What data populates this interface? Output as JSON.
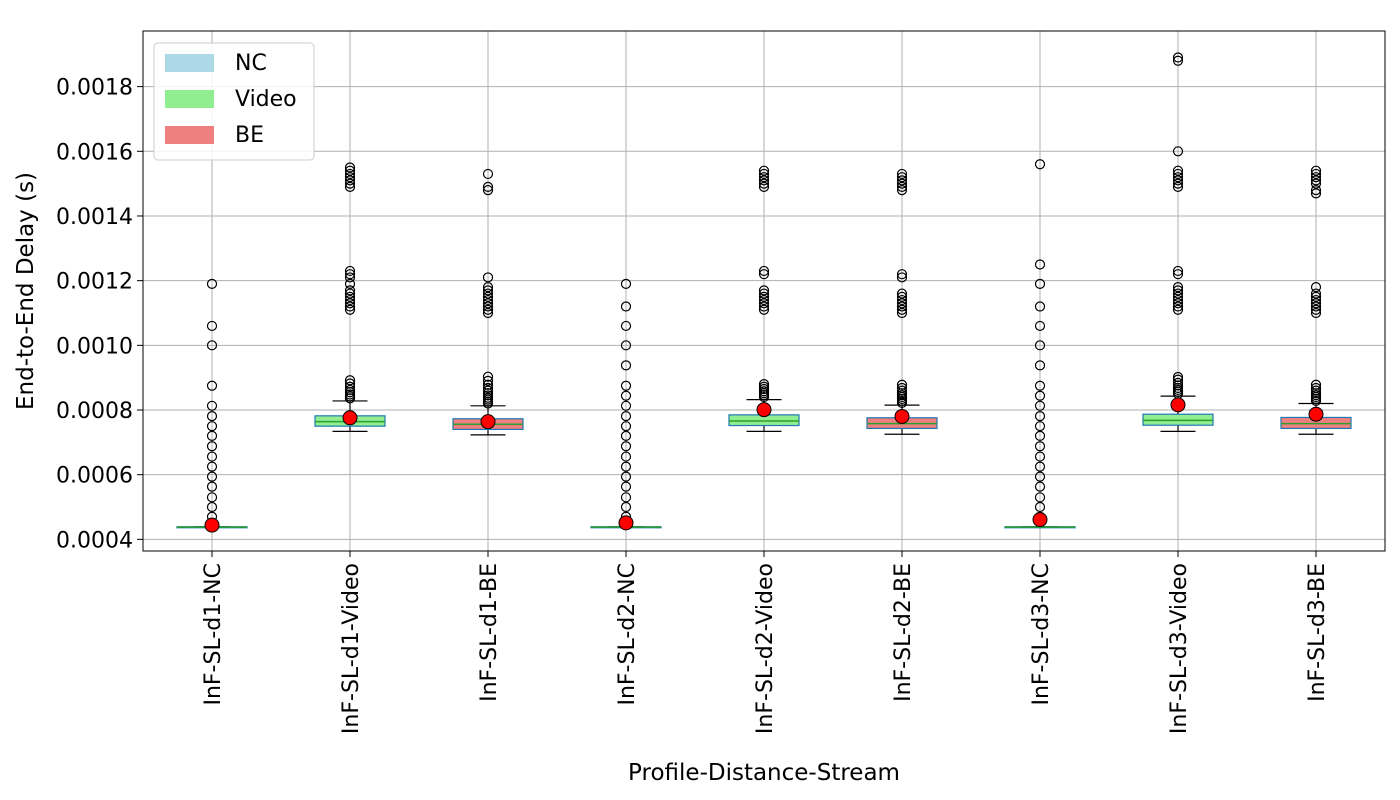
{
  "chart_data": {
    "type": "box",
    "title": "",
    "xlabel": "Profile-Distance-Stream",
    "ylabel": "End-to-End Delay (s)",
    "ylim": [
      0.000364,
      0.001972
    ],
    "yticks": [
      0.0004,
      0.0006,
      0.0008,
      0.001,
      0.0012,
      0.0014,
      0.0016,
      0.0018
    ],
    "ytick_labels": [
      "0.0004",
      "0.0006",
      "0.0008",
      "0.0010",
      "0.0012",
      "0.0014",
      "0.0016",
      "0.0018"
    ],
    "grid": true,
    "legend": {
      "position": "top-left",
      "entries": [
        {
          "label": "NC",
          "color": "#add8e6"
        },
        {
          "label": "Video",
          "color": "#90ee90"
        },
        {
          "label": "BE",
          "color": "#f08080"
        }
      ]
    },
    "colors": {
      "box_edge": "#1f77b4",
      "median": "#2ca02c",
      "mean_marker": "#ff0000",
      "grid": "#b0b0b0"
    },
    "categories": [
      "InF-SL-d1-NC",
      "InF-SL-d1-Video",
      "InF-SL-d1-BE",
      "InF-SL-d2-NC",
      "InF-SL-d2-Video",
      "InF-SL-d2-BE",
      "InF-SL-d3-NC",
      "InF-SL-d3-Video",
      "InF-SL-d3-BE"
    ],
    "boxes": [
      {
        "stream": "NC",
        "q1": 0.000438,
        "median": 0.000438,
        "q3": 0.000439,
        "whisker_low": 0.000438,
        "whisker_high": 0.000439,
        "mean": 0.000444,
        "outliers": [
          0.00047,
          0.0005,
          0.00053,
          0.000563,
          0.000594,
          0.000625,
          0.000656,
          0.000688,
          0.00072,
          0.00075,
          0.000781,
          0.000813,
          0.000875,
          0.001,
          0.00106,
          0.00119
        ]
      },
      {
        "stream": "Video",
        "q1": 0.00075,
        "median": 0.000764,
        "q3": 0.000782,
        "whisker_low": 0.000734,
        "whisker_high": 0.000828,
        "mean": 0.000776,
        "outliers": [
          0.000836,
          0.000842,
          0.000848,
          0.000855,
          0.000862,
          0.000872,
          0.000882,
          0.000892,
          0.00111,
          0.00112,
          0.00113,
          0.00114,
          0.00115,
          0.00116,
          0.00117,
          0.00119,
          0.00121,
          0.00122,
          0.00123,
          0.00149,
          0.0015,
          0.00151,
          0.00152,
          0.00153,
          0.00154,
          0.00155
        ]
      },
      {
        "stream": "BE",
        "q1": 0.00074,
        "median": 0.000756,
        "q3": 0.000773,
        "whisker_low": 0.000723,
        "whisker_high": 0.000813,
        "mean": 0.000764,
        "outliers": [
          0.00082,
          0.000826,
          0.000832,
          0.000838,
          0.000845,
          0.000852,
          0.00086,
          0.000868,
          0.000878,
          0.00089,
          0.000903,
          0.0011,
          0.00111,
          0.00112,
          0.00113,
          0.00114,
          0.00115,
          0.00116,
          0.00117,
          0.00118,
          0.00121,
          0.00148,
          0.00149,
          0.00153
        ]
      },
      {
        "stream": "NC",
        "q1": 0.000438,
        "median": 0.000438,
        "q3": 0.000439,
        "whisker_low": 0.000438,
        "whisker_high": 0.000439,
        "mean": 0.000451,
        "outliers": [
          0.00047,
          0.0005,
          0.00053,
          0.000563,
          0.000594,
          0.000625,
          0.000656,
          0.000688,
          0.00072,
          0.00075,
          0.000781,
          0.000813,
          0.000844,
          0.000875,
          0.000938,
          0.001,
          0.00106,
          0.00112,
          0.00119
        ]
      },
      {
        "stream": "Video",
        "q1": 0.000752,
        "median": 0.000766,
        "q3": 0.000785,
        "whisker_low": 0.000734,
        "whisker_high": 0.000832,
        "mean": 0.000801,
        "outliers": [
          0.00084,
          0.000846,
          0.000852,
          0.000858,
          0.000865,
          0.000872,
          0.00088,
          0.00111,
          0.00112,
          0.00113,
          0.00114,
          0.00115,
          0.00116,
          0.00117,
          0.00122,
          0.00123,
          0.00149,
          0.0015,
          0.00151,
          0.00152,
          0.00153,
          0.00154
        ]
      },
      {
        "stream": "BE",
        "q1": 0.000743,
        "median": 0.000758,
        "q3": 0.000776,
        "whisker_low": 0.000725,
        "whisker_high": 0.000815,
        "mean": 0.00078,
        "outliers": [
          0.000822,
          0.000828,
          0.000834,
          0.00084,
          0.000846,
          0.000852,
          0.00086,
          0.000868,
          0.000878,
          0.0011,
          0.00111,
          0.00112,
          0.00113,
          0.00114,
          0.00115,
          0.00116,
          0.00121,
          0.00122,
          0.00148,
          0.00149,
          0.0015,
          0.00151,
          0.00152,
          0.00153
        ]
      },
      {
        "stream": "NC",
        "q1": 0.000438,
        "median": 0.000438,
        "q3": 0.000439,
        "whisker_low": 0.000438,
        "whisker_high": 0.000439,
        "mean": 0.000461,
        "outliers": [
          0.00047,
          0.0005,
          0.00053,
          0.000563,
          0.000594,
          0.000625,
          0.000656,
          0.000688,
          0.00072,
          0.00075,
          0.000781,
          0.000813,
          0.000844,
          0.000875,
          0.000938,
          0.001,
          0.00106,
          0.00112,
          0.00119,
          0.00125,
          0.00156
        ]
      },
      {
        "stream": "Video",
        "q1": 0.000753,
        "median": 0.000768,
        "q3": 0.000787,
        "whisker_low": 0.000734,
        "whisker_high": 0.000843,
        "mean": 0.000816,
        "outliers": [
          0.00085,
          0.000856,
          0.000862,
          0.000868,
          0.000876,
          0.000884,
          0.000894,
          0.000902,
          0.00111,
          0.00112,
          0.00113,
          0.00114,
          0.00115,
          0.00116,
          0.00117,
          0.00118,
          0.00122,
          0.00123,
          0.00149,
          0.0015,
          0.00151,
          0.00152,
          0.00153,
          0.00154,
          0.0016,
          0.00188,
          0.00189
        ]
      },
      {
        "stream": "BE",
        "q1": 0.000743,
        "median": 0.000758,
        "q3": 0.000777,
        "whisker_low": 0.000725,
        "whisker_high": 0.00082,
        "mean": 0.000787,
        "outliers": [
          0.000828,
          0.000834,
          0.00084,
          0.000846,
          0.000852,
          0.00086,
          0.000868,
          0.000878,
          0.0011,
          0.00111,
          0.00112,
          0.00113,
          0.00114,
          0.00115,
          0.00116,
          0.00118,
          0.00147,
          0.00148,
          0.0015,
          0.00151,
          0.00152,
          0.00153,
          0.00154
        ]
      }
    ]
  }
}
